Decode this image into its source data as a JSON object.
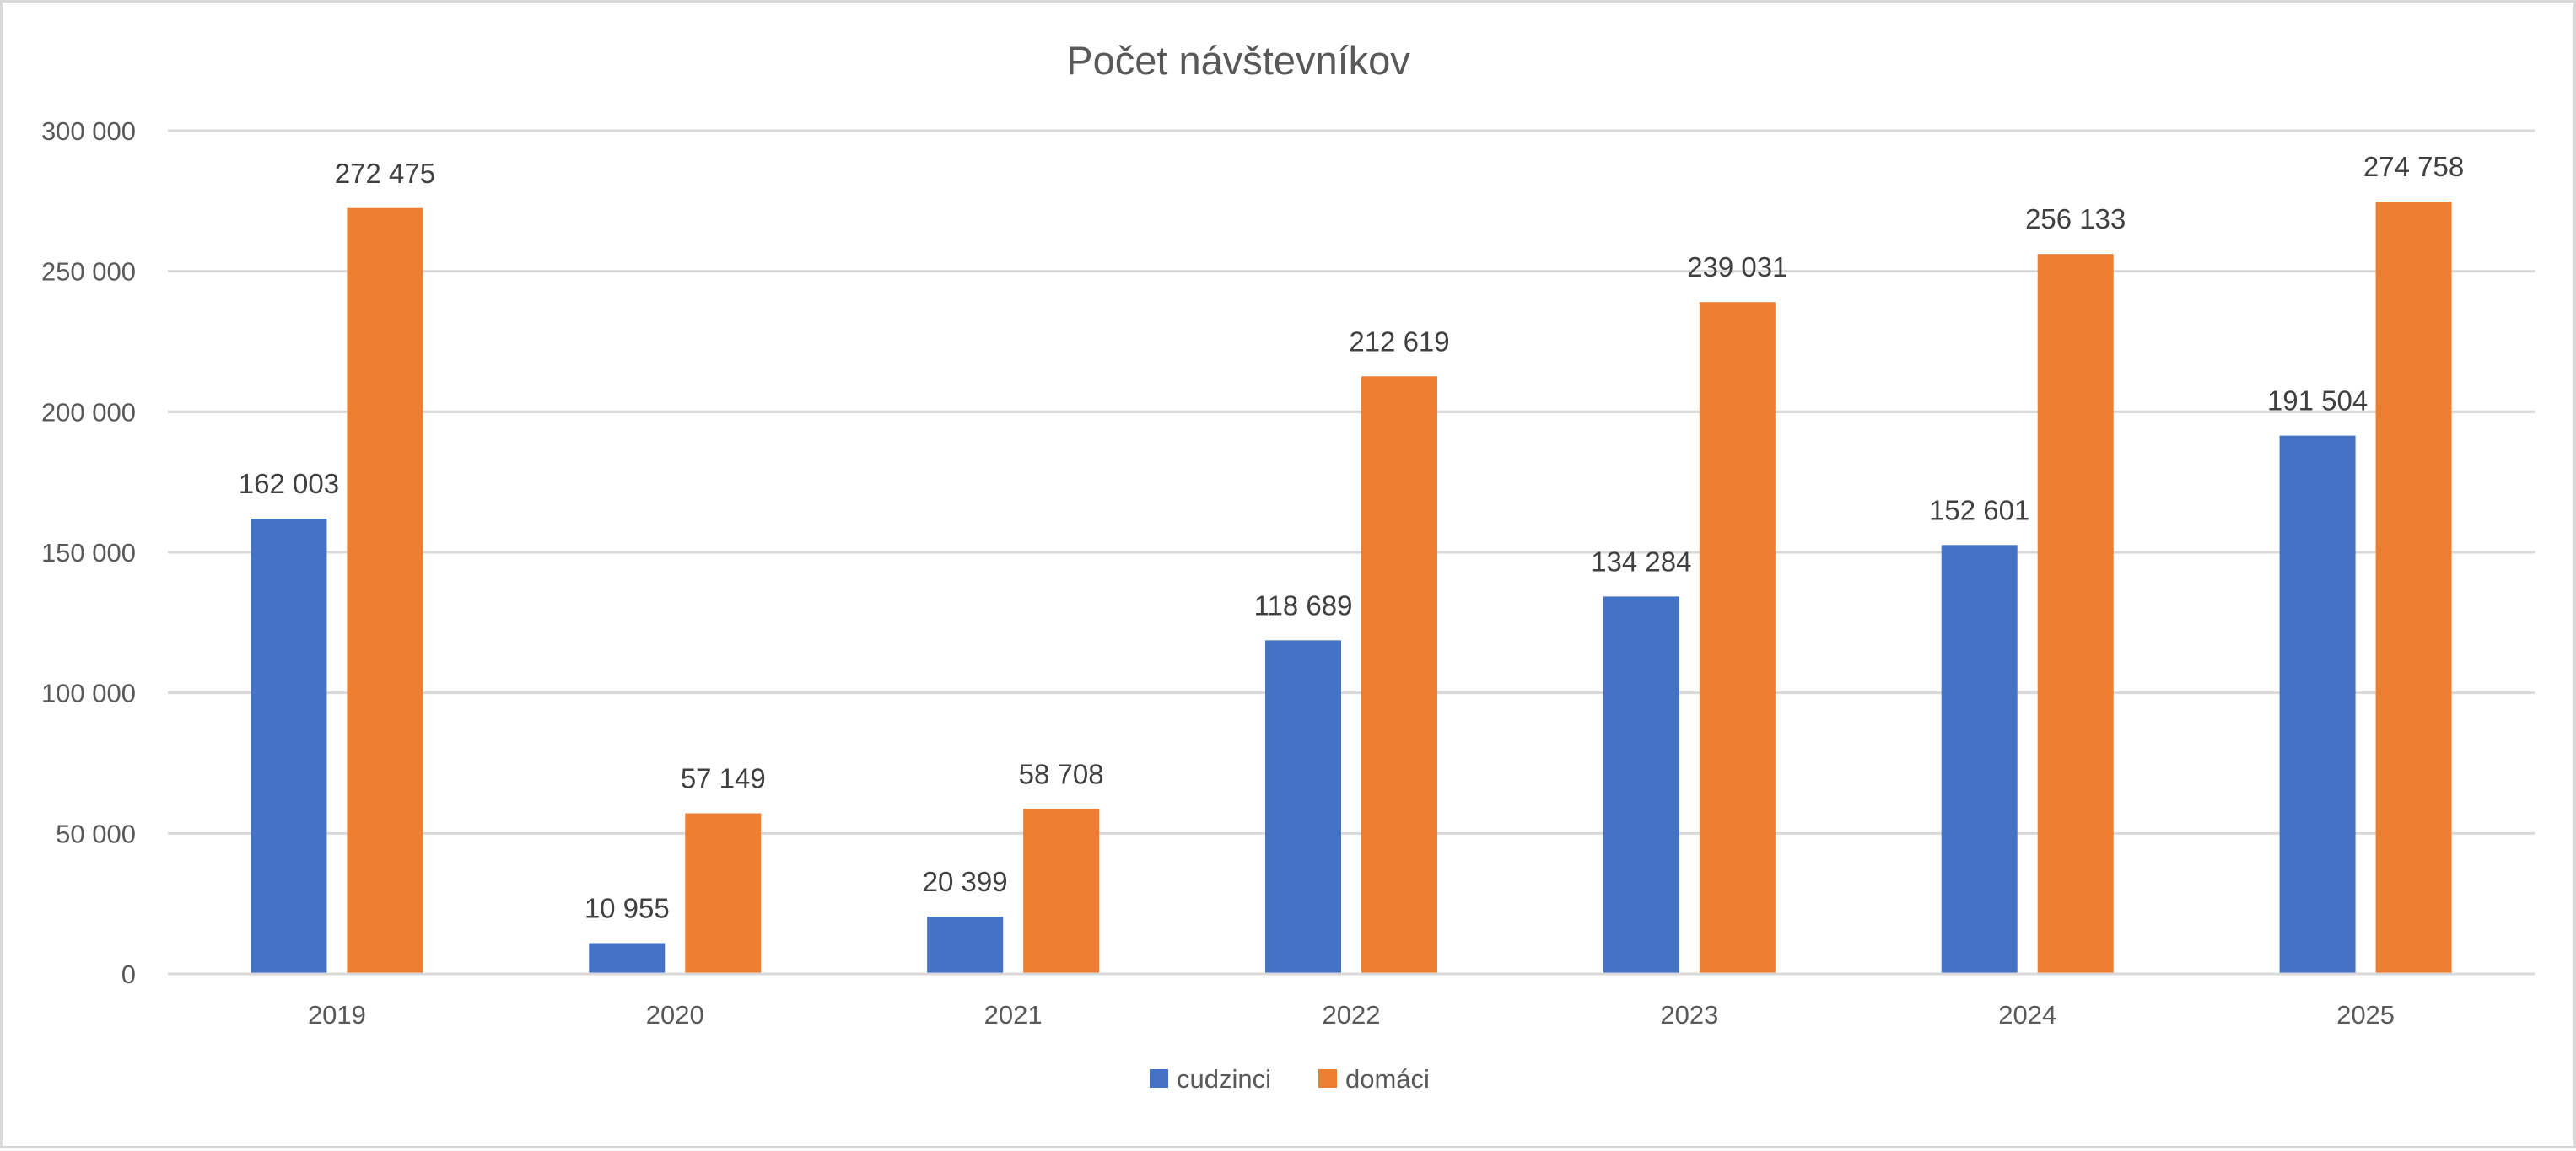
{
  "chart_data": {
    "type": "bar",
    "title": "Počet návštevníkov",
    "categories": [
      "2019",
      "2020",
      "2021",
      "2022",
      "2023",
      "2024",
      "2025"
    ],
    "series": [
      {
        "name": "cudzinci",
        "color": "#4472c4",
        "values": [
          162003,
          10955,
          20399,
          118689,
          134284,
          152601,
          191504
        ]
      },
      {
        "name": "domáci",
        "color": "#ed7d31",
        "values": [
          272475,
          57149,
          58708,
          212619,
          239031,
          256133,
          274758
        ]
      }
    ],
    "data_labels": [
      [
        "162 003",
        "10 955",
        "20 399",
        "118 689",
        "134 284",
        "152 601",
        "191 504"
      ],
      [
        "272 475",
        "57 149",
        "58 708",
        "212 619",
        "239 031",
        "256 133",
        "274 758"
      ]
    ],
    "y_ticks": [
      0,
      50000,
      100000,
      150000,
      200000,
      250000,
      300000
    ],
    "y_tick_labels": [
      "0",
      "50 000",
      "100 000",
      "150 000",
      "200 000",
      "250 000",
      "300 000"
    ],
    "ylim": [
      0,
      300000
    ],
    "grid": true,
    "legend_position": "bottom",
    "gridline_color": "#d9d9d9",
    "text_color": "#595959"
  }
}
